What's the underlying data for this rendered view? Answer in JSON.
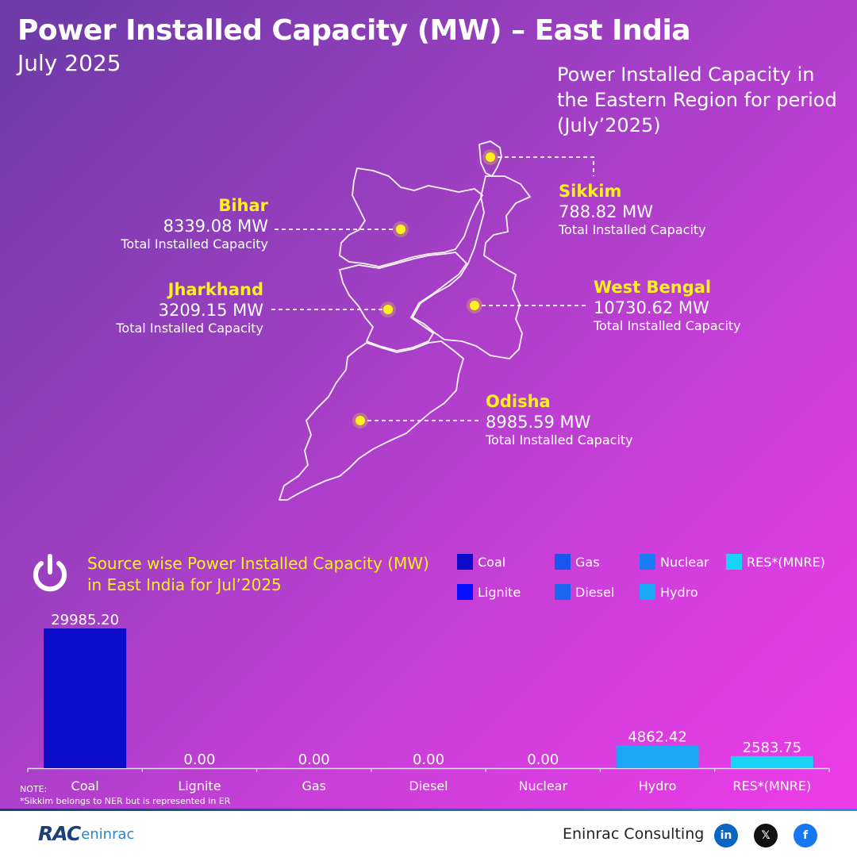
{
  "header": {
    "title": "Power Installed Capacity (MW) – East India",
    "subtitle": "July 2025"
  },
  "map": {
    "caption": "Power Installed Capacity in the Eastern Region for period (July’2025)",
    "marker_color": "#fff21c",
    "states": [
      {
        "name": "Bihar",
        "value": "8339.08 MW",
        "caption": "Total Installed Capacity"
      },
      {
        "name": "Jharkhand",
        "value": "3209.15 MW",
        "caption": "Total Installed Capacity"
      },
      {
        "name": "Sikkim",
        "value": "788.82 MW",
        "caption": "Total Installed Capacity"
      },
      {
        "name": "West Bengal",
        "value": "10730.62 MW",
        "caption": "Total Installed Capacity"
      },
      {
        "name": "Odisha",
        "value": "8985.59 MW",
        "caption": "Total Installed Capacity"
      }
    ]
  },
  "chart_title": "Source wise Power Installed Capacity (MW) in East India for Jul’2025",
  "legend": [
    {
      "label": "Coal",
      "color": "#0b0bc8"
    },
    {
      "label": "Gas",
      "color": "#1a55ee"
    },
    {
      "label": "Nuclear",
      "color": "#1a7cf2"
    },
    {
      "label": "RES*(MNRE)",
      "color": "#19d3f5"
    },
    {
      "label": "Lignite",
      "color": "#0a10ff"
    },
    {
      "label": "Diesel",
      "color": "#1a66ee"
    },
    {
      "label": "Hydro",
      "color": "#1aa8f5"
    }
  ],
  "chart_data": {
    "type": "bar",
    "title": "Source wise Power Installed Capacity (MW) in East India for Jul’2025",
    "categories": [
      "Coal",
      "Lignite",
      "Gas",
      "Diesel",
      "Nuclear",
      "Hydro",
      "RES*(MNRE)"
    ],
    "values": [
      29985.2,
      0.0,
      0.0,
      0.0,
      0.0,
      4862.42,
      2583.75
    ],
    "value_labels": [
      "29985.20",
      "0.00",
      "0.00",
      "0.00",
      "0.00",
      "4862.42",
      "2583.75"
    ],
    "colors": [
      "#0b0bc8",
      "#0a10ff",
      "#1a55ee",
      "#1a66ee",
      "#1a7cf2",
      "#1aa8f5",
      "#19d3f5"
    ],
    "ylim": [
      0,
      29985.2
    ],
    "grid": false,
    "legend_position": "top-right"
  },
  "notes": {
    "label": "NOTE:",
    "text": "*Sikkim belongs to NER but is represented in ER"
  },
  "footer": {
    "logo_main": "RAC",
    "logo_sub": "eninrac",
    "company": "Eninrac Consulting",
    "social": [
      {
        "name": "LinkedIn",
        "glyph": "in",
        "color": "#0a66c2"
      },
      {
        "name": "X",
        "glyph": "𝕏",
        "color": "#111111"
      },
      {
        "name": "Facebook",
        "glyph": "f",
        "color": "#1877f2"
      }
    ]
  }
}
